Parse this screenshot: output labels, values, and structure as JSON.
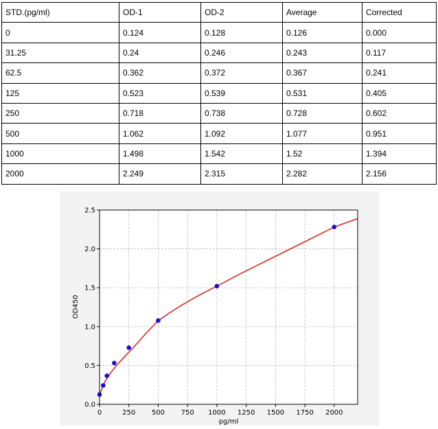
{
  "table": {
    "headers": [
      "STD.(pg/ml)",
      "OD-1",
      "OD-2",
      "Average",
      "Corrected"
    ],
    "rows": [
      [
        "0",
        "0.124",
        "0.128",
        "0.126",
        "0.000"
      ],
      [
        "31.25",
        "0.24",
        "0.246",
        "0.243",
        "0.117"
      ],
      [
        "62.5",
        "0.362",
        "0.372",
        "0.367",
        "0.241"
      ],
      [
        "125",
        "0.523",
        "0.539",
        "0.531",
        "0.405"
      ],
      [
        "250",
        "0.718",
        "0.738",
        "0.728",
        "0.602"
      ],
      [
        "500",
        "1.062",
        "1.092",
        "1.077",
        "0.951"
      ],
      [
        "1000",
        "1.498",
        "1.542",
        "1.52",
        "1.394"
      ],
      [
        "2000",
        "2.249",
        "2.315",
        "2.282",
        "2.156"
      ]
    ]
  },
  "chart_data": {
    "type": "scatter",
    "title": "",
    "xlabel": "pg/ml",
    "ylabel": "OD450",
    "xlim": [
      0,
      2200
    ],
    "ylim": [
      0,
      2.5
    ],
    "xticks": [
      0,
      250,
      500,
      750,
      1000,
      1250,
      1500,
      1750,
      2000
    ],
    "yticks": [
      0.0,
      0.5,
      1.0,
      1.5,
      2.0,
      2.5
    ],
    "xtick_labels": [
      "0",
      "250",
      "500",
      "750",
      "1000",
      "1250",
      "1500",
      "1750",
      "2000"
    ],
    "ytick_labels": [
      "0.0",
      "0.5",
      "1.0",
      "1.5",
      "2.0",
      "2.5"
    ],
    "grid": true,
    "points": {
      "x": [
        0,
        31.25,
        62.5,
        125,
        250,
        500,
        1000,
        2000
      ],
      "y": [
        0.126,
        0.243,
        0.367,
        0.531,
        0.728,
        1.077,
        1.52,
        2.282
      ]
    },
    "fit_curve": {
      "x": [
        0,
        50,
        100,
        150,
        200,
        250,
        300,
        400,
        500,
        600,
        700,
        800,
        900,
        1000,
        1200,
        1400,
        1600,
        1800,
        2000,
        2200
      ],
      "y": [
        0.126,
        0.305,
        0.415,
        0.51,
        0.59,
        0.672,
        0.75,
        0.92,
        1.077,
        1.18,
        1.275,
        1.363,
        1.445,
        1.52,
        1.68,
        1.83,
        1.98,
        2.13,
        2.282,
        2.39
      ]
    },
    "colors": {
      "points": "#1a10c8",
      "curve": "#d62728",
      "plot_background": "#f3f3f3",
      "grid": "#b0b0b0"
    }
  }
}
